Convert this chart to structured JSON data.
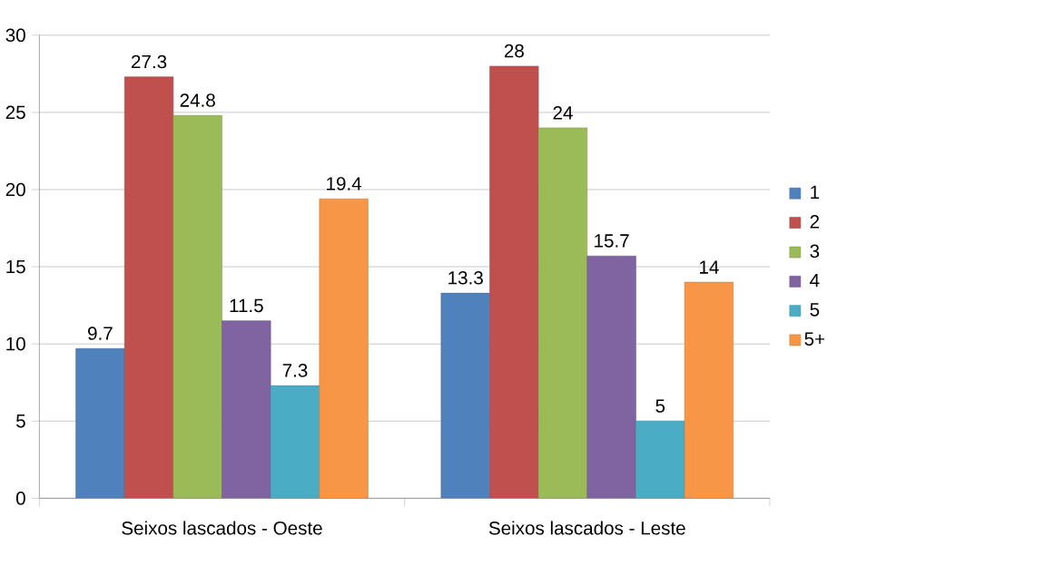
{
  "chart_data": {
    "type": "bar",
    "categories": [
      "Seixos lascados - Oeste",
      "Seixos lascados - Leste"
    ],
    "series": [
      {
        "name": "1",
        "color": "#4f81bd",
        "values": [
          9.7,
          13.3
        ]
      },
      {
        "name": "2",
        "color": "#c0504d",
        "values": [
          27.3,
          28
        ]
      },
      {
        "name": "3",
        "color": "#9bbb59",
        "values": [
          24.8,
          24
        ]
      },
      {
        "name": "4",
        "color": "#8064a2",
        "values": [
          11.5,
          15.7
        ]
      },
      {
        "name": "5",
        "color": "#4bacc6",
        "values": [
          7.3,
          5
        ]
      },
      {
        "name": "5+",
        "color": "#f79646",
        "values": [
          19.4,
          14
        ]
      }
    ],
    "ylim": [
      0,
      30
    ],
    "yticks": [
      0,
      5,
      10,
      15,
      20,
      25,
      30
    ],
    "grid": "y",
    "legend": "right",
    "data_labels": true
  }
}
